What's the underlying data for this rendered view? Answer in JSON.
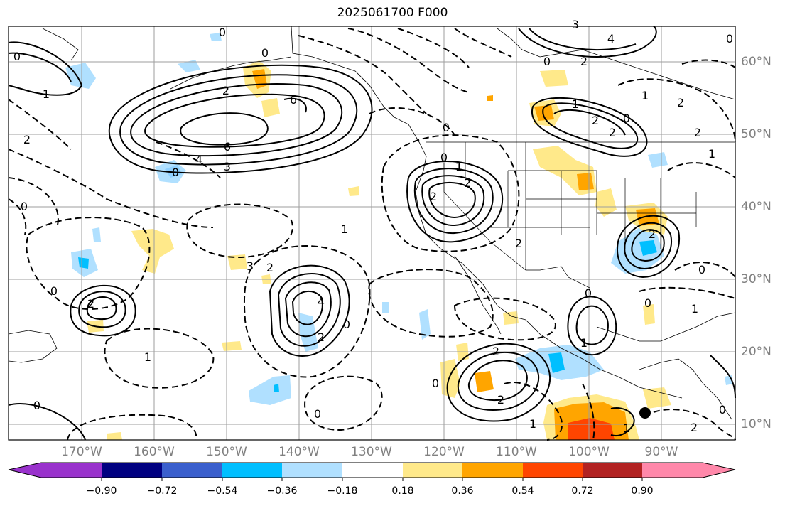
{
  "title": "2025061700 F000",
  "lat_labels": [
    "60°N",
    "50°N",
    "40°N",
    "30°N",
    "20°N",
    "10°N"
  ],
  "lon_labels": [
    "170°W",
    "160°W",
    "150°W",
    "140°W",
    "130°W",
    "120°W",
    "110°W",
    "100°W",
    "90°W"
  ],
  "colorbar": {
    "tick_labels": [
      "−0.90",
      "−0.72",
      "−0.54",
      "−0.36",
      "−0.18",
      "0.18",
      "0.36",
      "0.54",
      "0.72",
      "0.90"
    ],
    "colors": [
      "#9932cc",
      "#000080",
      "#3a5fcd",
      "#00bfff",
      "#b0e0ff",
      "#ffffff",
      "#ffe98a",
      "#ffa500",
      "#ff4500",
      "#b22222",
      "#ff88aa"
    ]
  },
  "contour_labels": [
    {
      "t": "0"
    },
    {
      "t": "0"
    },
    {
      "t": "2"
    },
    {
      "t": "6"
    },
    {
      "t": "6"
    },
    {
      "t": "4"
    },
    {
      "t": "3"
    },
    {
      "t": "0"
    },
    {
      "t": "2"
    },
    {
      "t": "0"
    },
    {
      "t": "1"
    },
    {
      "t": "0"
    },
    {
      "t": "3"
    },
    {
      "t": "2"
    },
    {
      "t": "4"
    },
    {
      "t": "2"
    },
    {
      "t": "0"
    },
    {
      "t": "0"
    },
    {
      "t": "2"
    },
    {
      "t": "0"
    },
    {
      "t": "1"
    },
    {
      "t": "2"
    },
    {
      "t": "2"
    },
    {
      "t": "0"
    },
    {
      "t": "1"
    },
    {
      "t": "0"
    },
    {
      "t": "0"
    },
    {
      "t": "2"
    },
    {
      "t": "1"
    },
    {
      "t": "2"
    },
    {
      "t": "0"
    },
    {
      "t": "1"
    },
    {
      "t": "3"
    },
    {
      "t": "0"
    },
    {
      "t": "2"
    },
    {
      "t": "2"
    },
    {
      "t": "0"
    },
    {
      "t": "1"
    },
    {
      "t": "2"
    },
    {
      "t": "0"
    },
    {
      "t": "2"
    },
    {
      "t": "1"
    },
    {
      "t": "1"
    },
    {
      "t": "2"
    },
    {
      "t": "1"
    },
    {
      "t": "0"
    },
    {
      "t": "1"
    },
    {
      "t": "0"
    },
    {
      "t": "0"
    },
    {
      "t": "4"
    },
    {
      "t": "2"
    },
    {
      "t": "2"
    },
    {
      "t": "1"
    },
    {
      "t": "2"
    },
    {
      "t": "0"
    }
  ]
}
